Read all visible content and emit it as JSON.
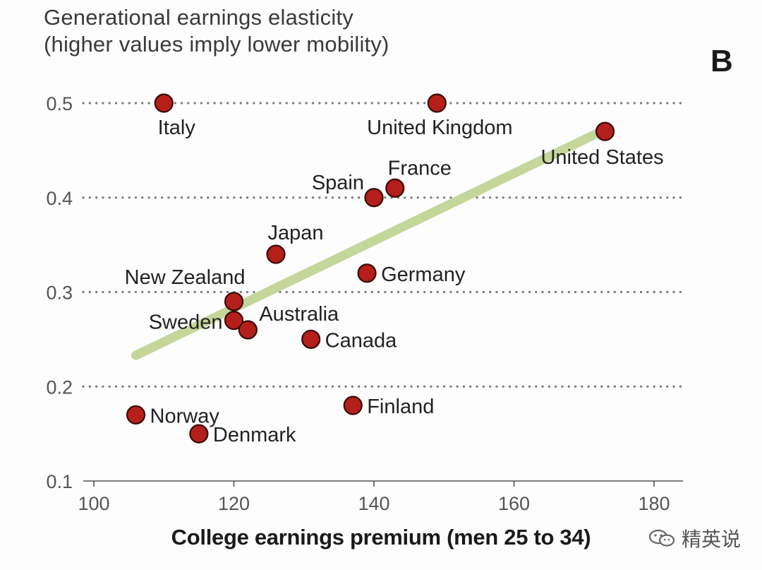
{
  "chart_data": {
    "type": "scatter",
    "title_lines": [
      "Generational earnings elasticity",
      "(higher values imply lower mobility)"
    ],
    "panel_label": "B",
    "xlabel": "College earnings premium (men 25 to 34)",
    "ylabel": "Generational earnings elasticity (higher values imply lower mobility)",
    "xlim": [
      100,
      185
    ],
    "ylim": [
      0.1,
      0.5
    ],
    "xticks": [
      100,
      120,
      140,
      160,
      180
    ],
    "yticks": [
      0.1,
      0.2,
      0.3,
      0.4,
      0.5
    ],
    "ytick_labels": [
      "0.1",
      "0.2",
      "0.3",
      "0.4",
      "0.5"
    ],
    "grid": "horizontal dotted",
    "point_color": "#b51f1a",
    "trend_color": "#c5d69a",
    "points": [
      {
        "label": "Italy",
        "x": 110,
        "y": 0.5,
        "label_pos": "below"
      },
      {
        "label": "United Kingdom",
        "x": 149,
        "y": 0.5,
        "label_pos": "below"
      },
      {
        "label": "United States",
        "x": 173,
        "y": 0.47,
        "label_pos": "below"
      },
      {
        "label": "France",
        "x": 143,
        "y": 0.41,
        "label_pos": "above"
      },
      {
        "label": "Spain",
        "x": 140,
        "y": 0.4,
        "label_pos": "left-above"
      },
      {
        "label": "Japan",
        "x": 126,
        "y": 0.34,
        "label_pos": "above"
      },
      {
        "label": "Germany",
        "x": 139,
        "y": 0.32,
        "label_pos": "right"
      },
      {
        "label": "New Zealand",
        "x": 120,
        "y": 0.29,
        "label_pos": "left-above"
      },
      {
        "label": "Sweden",
        "x": 120,
        "y": 0.27,
        "label_pos": "left"
      },
      {
        "label": "Australia",
        "x": 122,
        "y": 0.26,
        "label_pos": "right-above"
      },
      {
        "label": "Canada",
        "x": 131,
        "y": 0.25,
        "label_pos": "right"
      },
      {
        "label": "Finland",
        "x": 137,
        "y": 0.18,
        "label_pos": "right"
      },
      {
        "label": "Norway",
        "x": 106,
        "y": 0.17,
        "label_pos": "right"
      },
      {
        "label": "Denmark",
        "x": 115,
        "y": 0.15,
        "label_pos": "right"
      }
    ],
    "trend_line": {
      "x": [
        106,
        173
      ],
      "y": [
        0.233,
        0.472
      ]
    }
  },
  "watermark": {
    "text": "精英说",
    "icon": "wechat-icon"
  }
}
